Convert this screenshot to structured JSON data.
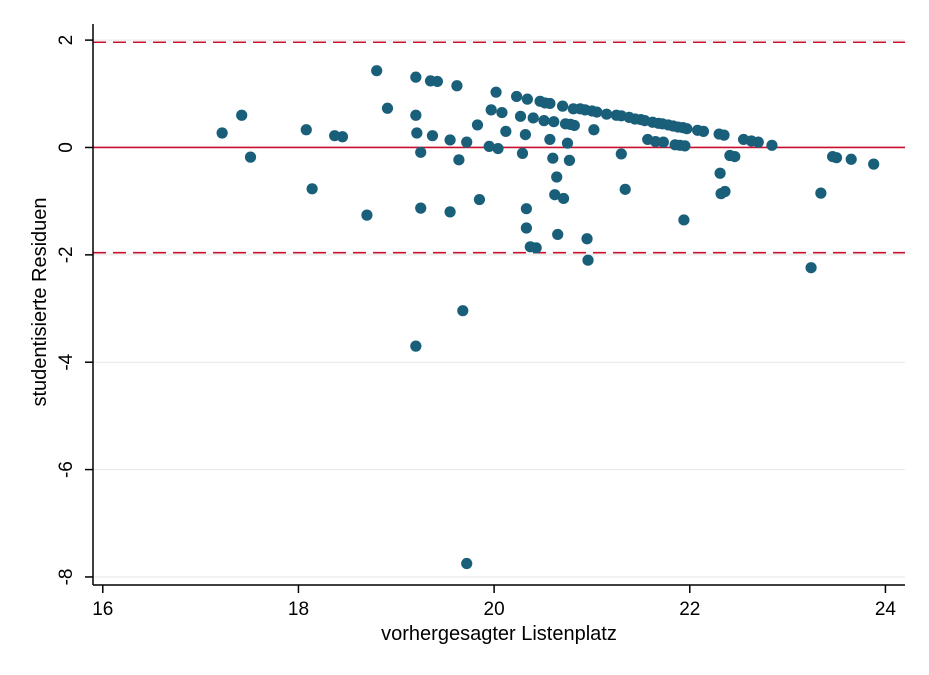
{
  "chart_data": {
    "type": "scatter",
    "title": "",
    "xlabel": "vorhergesagter Listenplatz",
    "ylabel": "studentisierte Residuen",
    "xlim": [
      15.9,
      24.2
    ],
    "ylim": [
      -8.15,
      2.3
    ],
    "x_ticks": [
      16,
      18,
      20,
      22,
      24
    ],
    "x_tick_labels": [
      "16",
      "18",
      "20",
      "22",
      "24"
    ],
    "y_ticks": [
      -8,
      -6,
      -4,
      -2,
      0,
      2
    ],
    "y_tick_labels": [
      "-8",
      "-6",
      "-4",
      "-2",
      "0",
      "2"
    ],
    "grid": "horizontal",
    "reference_lines": [
      {
        "y": 1.96,
        "style": "dashed",
        "color": "#c8102e"
      },
      {
        "y": 0,
        "style": "solid",
        "color": "#c8102e"
      },
      {
        "y": -1.96,
        "style": "dashed",
        "color": "#c8102e"
      }
    ],
    "marker_color": "#1a5f7a",
    "series": [
      {
        "points": [
          [
            17.22,
            0.27
          ],
          [
            17.42,
            0.6
          ],
          [
            17.51,
            -0.18
          ],
          [
            18.08,
            0.33
          ],
          [
            18.14,
            -0.77
          ],
          [
            18.37,
            0.22
          ],
          [
            18.45,
            0.2
          ],
          [
            18.7,
            -1.26
          ],
          [
            18.8,
            1.43
          ],
          [
            18.91,
            0.73
          ],
          [
            19.2,
            1.31
          ],
          [
            19.2,
            0.6
          ],
          [
            19.21,
            0.27
          ],
          [
            19.25,
            -0.09
          ],
          [
            19.25,
            -1.13
          ],
          [
            19.2,
            -3.7
          ],
          [
            19.35,
            1.24
          ],
          [
            19.42,
            1.23
          ],
          [
            19.37,
            0.22
          ],
          [
            19.55,
            0.14
          ],
          [
            19.55,
            -1.2
          ],
          [
            19.62,
            1.15
          ],
          [
            19.64,
            -0.23
          ],
          [
            19.68,
            -3.04
          ],
          [
            19.72,
            0.1
          ],
          [
            19.72,
            -7.75
          ],
          [
            19.83,
            0.42
          ],
          [
            19.85,
            -0.97
          ],
          [
            19.95,
            0.02
          ],
          [
            19.97,
            0.7
          ],
          [
            20.02,
            1.03
          ],
          [
            20.04,
            -0.02
          ],
          [
            20.08,
            0.65
          ],
          [
            20.12,
            0.3
          ],
          [
            20.23,
            0.95
          ],
          [
            20.27,
            0.58
          ],
          [
            20.29,
            -0.11
          ],
          [
            20.32,
            0.24
          ],
          [
            20.34,
            0.9
          ],
          [
            20.33,
            -1.14
          ],
          [
            20.33,
            -1.5
          ],
          [
            20.37,
            -1.85
          ],
          [
            20.43,
            -1.87
          ],
          [
            20.4,
            0.55
          ],
          [
            20.47,
            0.86
          ],
          [
            20.52,
            0.83
          ],
          [
            20.51,
            0.5
          ],
          [
            20.57,
            0.82
          ],
          [
            20.57,
            0.15
          ],
          [
            20.6,
            -0.2
          ],
          [
            20.61,
            0.48
          ],
          [
            20.62,
            -0.88
          ],
          [
            20.64,
            -0.55
          ],
          [
            20.65,
            -1.62
          ],
          [
            20.7,
            0.77
          ],
          [
            20.71,
            -0.95
          ],
          [
            20.73,
            0.44
          ],
          [
            20.75,
            0.08
          ],
          [
            20.77,
            -0.24
          ],
          [
            20.78,
            0.43
          ],
          [
            20.81,
            0.72
          ],
          [
            20.82,
            0.41
          ],
          [
            20.88,
            0.72
          ],
          [
            20.93,
            0.7
          ],
          [
            20.95,
            -1.7
          ],
          [
            20.96,
            -2.1
          ],
          [
            21.0,
            0.68
          ],
          [
            21.02,
            0.33
          ],
          [
            21.05,
            0.66
          ],
          [
            21.15,
            0.62
          ],
          [
            21.25,
            0.6
          ],
          [
            21.3,
            0.59
          ],
          [
            21.3,
            -0.12
          ],
          [
            21.34,
            -0.78
          ],
          [
            21.38,
            0.56
          ],
          [
            21.44,
            0.53
          ],
          [
            21.5,
            0.52
          ],
          [
            21.54,
            0.5
          ],
          [
            21.57,
            0.15
          ],
          [
            21.62,
            0.47
          ],
          [
            21.65,
            0.11
          ],
          [
            21.68,
            0.45
          ],
          [
            21.72,
            0.44
          ],
          [
            21.73,
            0.1
          ],
          [
            21.78,
            0.42
          ],
          [
            21.83,
            0.4
          ],
          [
            21.85,
            0.05
          ],
          [
            21.88,
            0.38
          ],
          [
            21.9,
            0.04
          ],
          [
            21.93,
            0.37
          ],
          [
            21.94,
            -1.35
          ],
          [
            21.95,
            0.03
          ],
          [
            21.97,
            0.35
          ],
          [
            22.08,
            0.32
          ],
          [
            22.14,
            0.3
          ],
          [
            22.3,
            0.25
          ],
          [
            22.31,
            -0.48
          ],
          [
            22.32,
            -0.86
          ],
          [
            22.35,
            0.23
          ],
          [
            22.36,
            -0.82
          ],
          [
            22.41,
            -0.15
          ],
          [
            22.46,
            -0.17
          ],
          [
            22.55,
            0.15
          ],
          [
            22.63,
            0.12
          ],
          [
            22.7,
            0.1
          ],
          [
            22.84,
            0.04
          ],
          [
            23.24,
            -2.24
          ],
          [
            23.34,
            -0.85
          ],
          [
            23.46,
            -0.17
          ],
          [
            23.5,
            -0.19
          ],
          [
            23.65,
            -0.22
          ],
          [
            23.88,
            -0.31
          ]
        ]
      }
    ]
  }
}
